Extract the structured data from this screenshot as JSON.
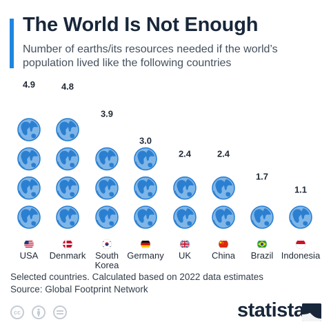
{
  "header": {
    "title": "The World Is Not Enough",
    "subtitle": "Number of earths/its resources needed if the world’s population lived like the following countries"
  },
  "chart_data": {
    "type": "pictograph-bar",
    "unit_icon": "globe-icon",
    "categories": [
      {
        "label": "USA",
        "value": 4.9,
        "flag": "usa-flag-icon"
      },
      {
        "label": "Denmark",
        "value": 4.8,
        "flag": "denmark-flag-icon"
      },
      {
        "label": "South Korea",
        "label_lines": [
          "South",
          "Korea"
        ],
        "value": 3.9,
        "flag": "south-korea-flag-icon"
      },
      {
        "label": "Germany",
        "value": 3.0,
        "flag": "germany-flag-icon"
      },
      {
        "label": "UK",
        "value": 2.4,
        "flag": "uk-flag-icon"
      },
      {
        "label": "China",
        "value": 2.4,
        "flag": "china-flag-icon"
      },
      {
        "label": "Brazil",
        "value": 1.7,
        "flag": "brazil-flag-icon"
      },
      {
        "label": "Indonesia",
        "value": 1.1,
        "flag": "indonesia-flag-icon"
      }
    ],
    "value_labels": [
      "4.9",
      "4.8",
      "3.9",
      "3.0",
      "2.4",
      "2.4",
      "1.7",
      "1.1"
    ],
    "colors": {
      "ocean": "#7fb6e8",
      "land": "#2b7fd0",
      "outline": "#1f6fc0"
    }
  },
  "footer": {
    "note": "Selected countries. Calculated based on 2022 data estimates",
    "source": "Source: Global Footprint Network",
    "brand": "statista",
    "license_icons": [
      "cc-icon",
      "attribution-icon",
      "no-derivatives-icon"
    ]
  },
  "colors": {
    "accent": "#1f86e0",
    "title": "#18273a"
  }
}
